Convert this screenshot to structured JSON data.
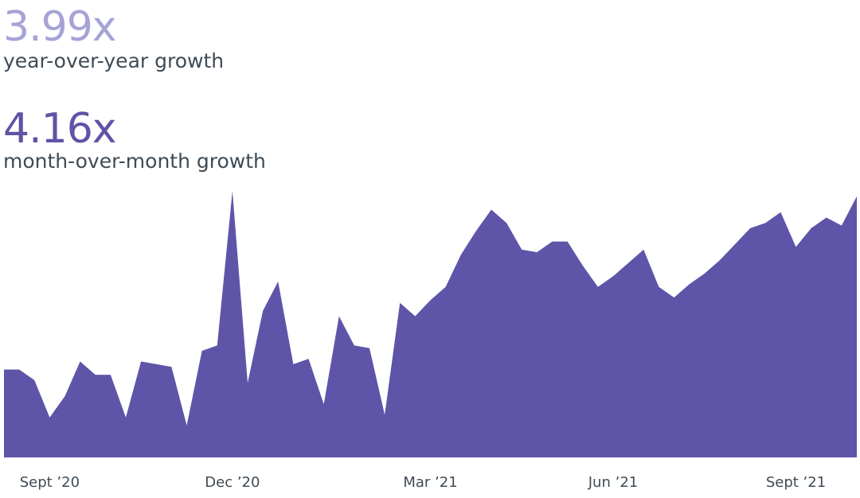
{
  "stats": {
    "yoy": {
      "value": "3.99x",
      "label": "year-over-year growth",
      "color": "#a6a3d6"
    },
    "mom": {
      "value": "4.16x",
      "label": "month-over-month growth",
      "color": "#5e53a6"
    }
  },
  "chart_data": {
    "type": "area",
    "title": "",
    "xlabel": "",
    "ylabel": "",
    "fill_color": "#5e55a8",
    "grid": false,
    "legend": "none",
    "ylim": [
      0,
      100
    ],
    "x_ticks": [
      {
        "label": "Sept ’20",
        "index": 3
      },
      {
        "label": "Dec ’20",
        "index": 15
      },
      {
        "label": "Mar ’21",
        "index": 28
      },
      {
        "label": "Jun ’21",
        "index": 40
      },
      {
        "label": "Sept ’21",
        "index": 52
      }
    ],
    "values": [
      33,
      33,
      29,
      15,
      23,
      36,
      31,
      31,
      15,
      36,
      35,
      34,
      12,
      40,
      42,
      100,
      28,
      55,
      66,
      35,
      37,
      20,
      53,
      42,
      41,
      16,
      58,
      53,
      59,
      64,
      76,
      85,
      93,
      88,
      78,
      77,
      81,
      81,
      72,
      64,
      68,
      73,
      78,
      64,
      60,
      65,
      69,
      74,
      80,
      86,
      88,
      92,
      79,
      86,
      90,
      87,
      98
    ]
  }
}
